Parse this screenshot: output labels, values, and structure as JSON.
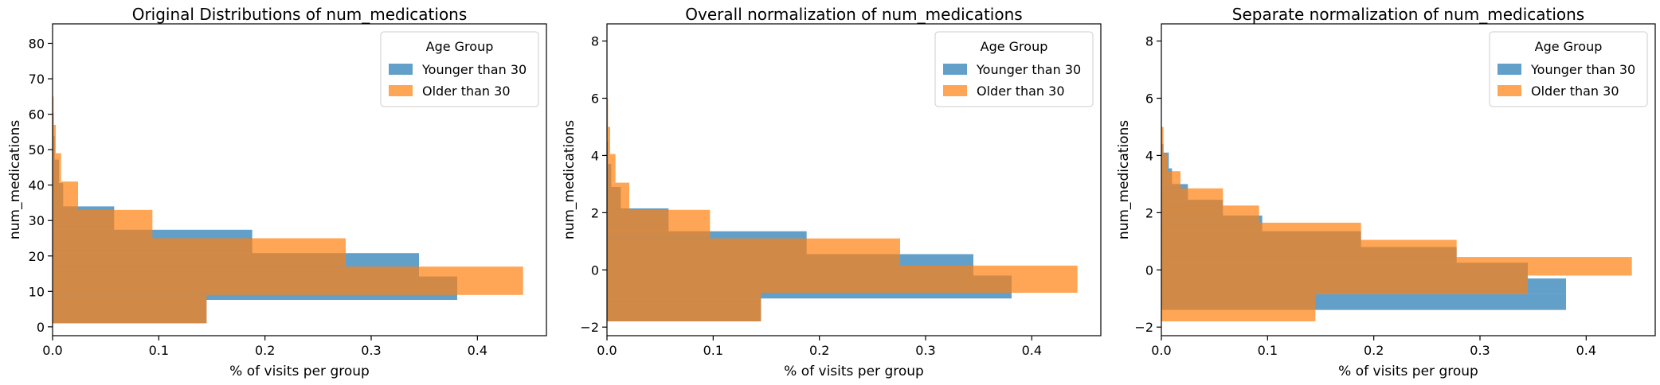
{
  "colors": {
    "younger": "#1f77b4",
    "older": "#ff7f0e"
  },
  "chart_data": [
    {
      "type": "bar",
      "orientation": "horizontal-histogram",
      "title": "Original Distributions of num_medications",
      "xlabel": "% of visits per group",
      "ylabel": "num_medications",
      "xlim": [
        0,
        0.465
      ],
      "ylim": [
        -2.5,
        85.5
      ],
      "xticks": [
        0.0,
        0.1,
        0.2,
        0.3,
        0.4
      ],
      "xtick_labels": [
        "0.0",
        "0.1",
        "0.2",
        "0.3",
        "0.4"
      ],
      "yticks": [
        0,
        10,
        20,
        30,
        40,
        50,
        60,
        70,
        80
      ],
      "ytick_labels": [
        "0",
        "10",
        "20",
        "30",
        "40",
        "50",
        "60",
        "70",
        "80"
      ],
      "legend": {
        "title": "Age Group",
        "placement": "upper right",
        "entries": [
          "Younger than 30",
          "Older than 30"
        ]
      },
      "series": [
        {
          "name": "Younger than 30",
          "bins": [
            {
              "y0": 1,
              "y1": 7.6,
              "value": 0.145
            },
            {
              "y0": 7.6,
              "y1": 14.2,
              "value": 0.381
            },
            {
              "y0": 14.2,
              "y1": 20.8,
              "value": 0.345
            },
            {
              "y0": 20.8,
              "y1": 27.4,
              "value": 0.188
            },
            {
              "y0": 27.4,
              "y1": 34,
              "value": 0.058
            },
            {
              "y0": 34,
              "y1": 40.6,
              "value": 0.01
            },
            {
              "y0": 40.6,
              "y1": 47.2,
              "value": 0.006
            },
            {
              "y0": 47.2,
              "y1": 53.8,
              "value": 0.002
            },
            {
              "y0": 53.8,
              "y1": 60.4,
              "value": 0.001
            }
          ]
        },
        {
          "name": "Older than 30",
          "bins": [
            {
              "y0": 1,
              "y1": 9,
              "value": 0.145
            },
            {
              "y0": 9,
              "y1": 17,
              "value": 0.443
            },
            {
              "y0": 17,
              "y1": 25,
              "value": 0.276
            },
            {
              "y0": 25,
              "y1": 33,
              "value": 0.094
            },
            {
              "y0": 33,
              "y1": 41,
              "value": 0.024
            },
            {
              "y0": 41,
              "y1": 49,
              "value": 0.008
            },
            {
              "y0": 49,
              "y1": 57,
              "value": 0.003
            },
            {
              "y0": 57,
              "y1": 65,
              "value": 0.001
            }
          ]
        }
      ]
    },
    {
      "type": "bar",
      "orientation": "horizontal-histogram",
      "title": "Overall normalization of num_medications",
      "xlabel": "% of visits per group",
      "ylabel": "num_medications",
      "xlim": [
        0,
        0.465
      ],
      "ylim": [
        -2.3,
        8.6
      ],
      "xticks": [
        0.0,
        0.1,
        0.2,
        0.3,
        0.4
      ],
      "xtick_labels": [
        "0.0",
        "0.1",
        "0.2",
        "0.3",
        "0.4"
      ],
      "yticks": [
        -2,
        0,
        2,
        4,
        6,
        8
      ],
      "ytick_labels": [
        "−2",
        "0",
        "2",
        "4",
        "6",
        "8"
      ],
      "legend": {
        "title": "Age Group",
        "placement": "upper right",
        "entries": [
          "Younger than 30",
          "Older than 30"
        ]
      },
      "series": [
        {
          "name": "Younger than 30",
          "bins": [
            {
              "y0": -1.8,
              "y1": -1.0,
              "value": 0.145
            },
            {
              "y0": -1.0,
              "y1": -0.2,
              "value": 0.381
            },
            {
              "y0": -0.2,
              "y1": 0.55,
              "value": 0.345
            },
            {
              "y0": 0.55,
              "y1": 1.35,
              "value": 0.188
            },
            {
              "y0": 1.35,
              "y1": 2.15,
              "value": 0.058
            },
            {
              "y0": 2.15,
              "y1": 2.9,
              "value": 0.013
            },
            {
              "y0": 2.9,
              "y1": 3.7,
              "value": 0.004
            },
            {
              "y0": 3.7,
              "y1": 4.5,
              "value": 0.001
            }
          ]
        },
        {
          "name": "Older than 30",
          "bins": [
            {
              "y0": -1.8,
              "y1": -0.8,
              "value": 0.145
            },
            {
              "y0": -0.8,
              "y1": 0.15,
              "value": 0.443
            },
            {
              "y0": 0.15,
              "y1": 1.1,
              "value": 0.276
            },
            {
              "y0": 1.1,
              "y1": 2.1,
              "value": 0.097
            },
            {
              "y0": 2.1,
              "y1": 3.05,
              "value": 0.021
            },
            {
              "y0": 3.05,
              "y1": 4.05,
              "value": 0.008
            },
            {
              "y0": 4.05,
              "y1": 5.0,
              "value": 0.003
            },
            {
              "y0": 5.0,
              "y1": 6.0,
              "value": 0.001
            }
          ]
        }
      ]
    },
    {
      "type": "bar",
      "orientation": "horizontal-histogram",
      "title": "Separate normalization of num_medications",
      "xlabel": "% of visits per group",
      "ylabel": "num_medications",
      "xlim": [
        0,
        0.465
      ],
      "ylim": [
        -2.3,
        8.6
      ],
      "xticks": [
        0.0,
        0.1,
        0.2,
        0.3,
        0.4
      ],
      "xtick_labels": [
        "0.0",
        "0.1",
        "0.2",
        "0.3",
        "0.4"
      ],
      "yticks": [
        -2,
        0,
        2,
        4,
        6,
        8
      ],
      "ytick_labels": [
        "−2",
        "0",
        "2",
        "4",
        "6",
        "8"
      ],
      "legend": {
        "title": "Age Group",
        "placement": "upper right",
        "entries": [
          "Younger than 30",
          "Older than 30"
        ]
      },
      "series": [
        {
          "name": "Younger than 30",
          "bins": [
            {
              "y0": -1.4,
              "y1": -0.85,
              "value": 0.381
            },
            {
              "y0": -0.85,
              "y1": -0.3,
              "value": 0.381
            },
            {
              "y0": -0.3,
              "y1": 0.25,
              "value": 0.345
            },
            {
              "y0": 0.25,
              "y1": 0.8,
              "value": 0.278
            },
            {
              "y0": 0.8,
              "y1": 1.35,
              "value": 0.188
            },
            {
              "y0": 1.35,
              "y1": 1.9,
              "value": 0.095
            },
            {
              "y0": 1.9,
              "y1": 2.45,
              "value": 0.058
            },
            {
              "y0": 2.45,
              "y1": 3.0,
              "value": 0.025
            },
            {
              "y0": 3.0,
              "y1": 3.55,
              "value": 0.01
            },
            {
              "y0": 3.55,
              "y1": 4.1,
              "value": 0.007
            },
            {
              "y0": 4.1,
              "y1": 4.4,
              "value": 0.002
            }
          ]
        },
        {
          "name": "Older than 30",
          "bins": [
            {
              "y0": -1.8,
              "y1": -1.4,
              "value": 0.145
            },
            {
              "y0": -1.4,
              "y1": -0.85,
              "value": 0.145
            },
            {
              "y0": -0.85,
              "y1": -0.2,
              "value": 0.345
            },
            {
              "y0": -0.2,
              "y1": 0.45,
              "value": 0.443
            },
            {
              "y0": 0.45,
              "y1": 1.05,
              "value": 0.278
            },
            {
              "y0": 1.05,
              "y1": 1.65,
              "value": 0.188
            },
            {
              "y0": 1.65,
              "y1": 2.25,
              "value": 0.092
            },
            {
              "y0": 2.25,
              "y1": 2.85,
              "value": 0.058
            },
            {
              "y0": 2.85,
              "y1": 3.45,
              "value": 0.018
            },
            {
              "y0": 3.45,
              "y1": 4.05,
              "value": 0.006
            },
            {
              "y0": 4.05,
              "y1": 5.0,
              "value": 0.002
            }
          ]
        }
      ]
    }
  ]
}
